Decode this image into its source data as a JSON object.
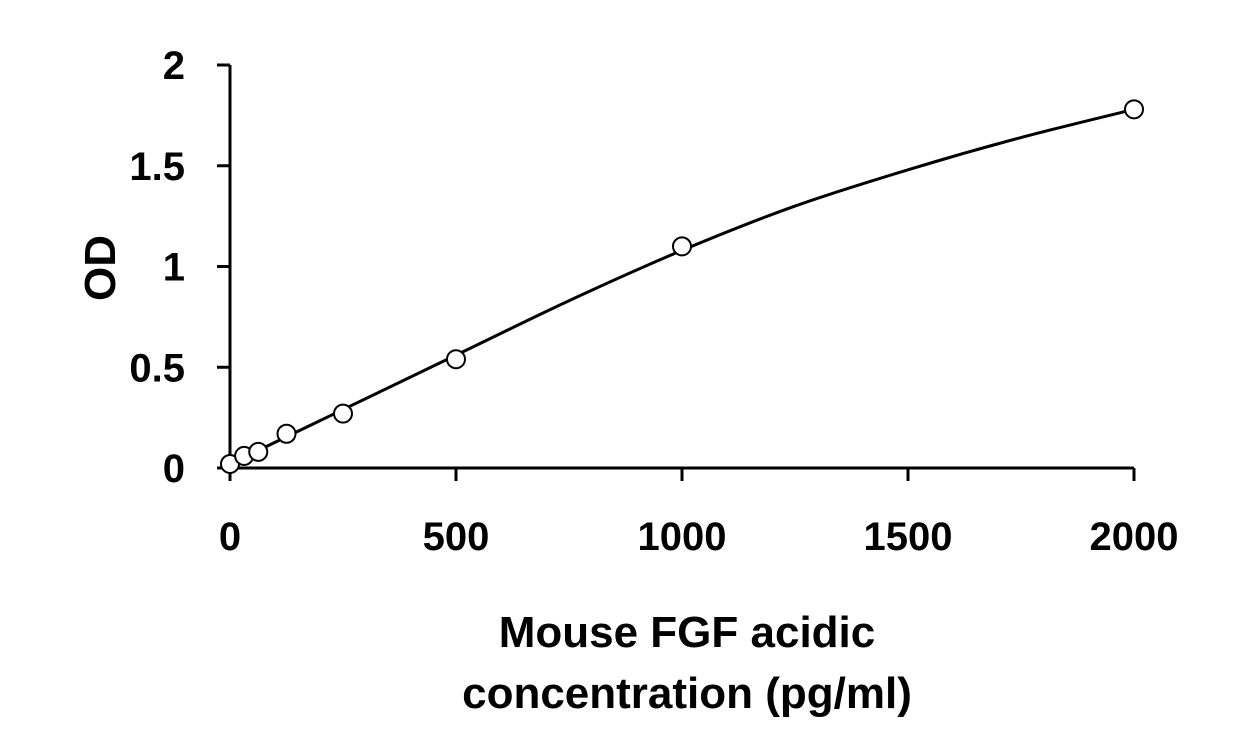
{
  "chart_data": {
    "type": "scatter",
    "xlabel_lines": [
      "Mouse FGF acidic",
      "concentration (pg/ml)"
    ],
    "ylabel": "OD",
    "xlim": [
      0,
      2000
    ],
    "ylim": [
      0,
      2
    ],
    "x_ticks": [
      0,
      500,
      1000,
      1500,
      2000
    ],
    "y_ticks": [
      0,
      0.5,
      1,
      1.5,
      2
    ],
    "x_tick_labels": [
      "0",
      "500",
      "1000",
      "1500",
      "2000"
    ],
    "y_tick_labels": [
      "0",
      "0.5",
      "1",
      "1.5",
      "2"
    ],
    "grid": false,
    "series": [
      {
        "marker": "open-circle",
        "x": [
          0,
          31.25,
          62.5,
          125,
          250,
          500,
          1000,
          2000
        ],
        "y": [
          0.02,
          0.06,
          0.08,
          0.17,
          0.27,
          0.54,
          1.1,
          1.78
        ]
      }
    ],
    "fit_curve": {
      "style": "smooth-line",
      "x": [
        0,
        250,
        500,
        750,
        1000,
        1250,
        1500,
        1750,
        2000
      ],
      "y": [
        0.02,
        0.29,
        0.56,
        0.83,
        1.08,
        1.3,
        1.48,
        1.64,
        1.78
      ]
    }
  }
}
